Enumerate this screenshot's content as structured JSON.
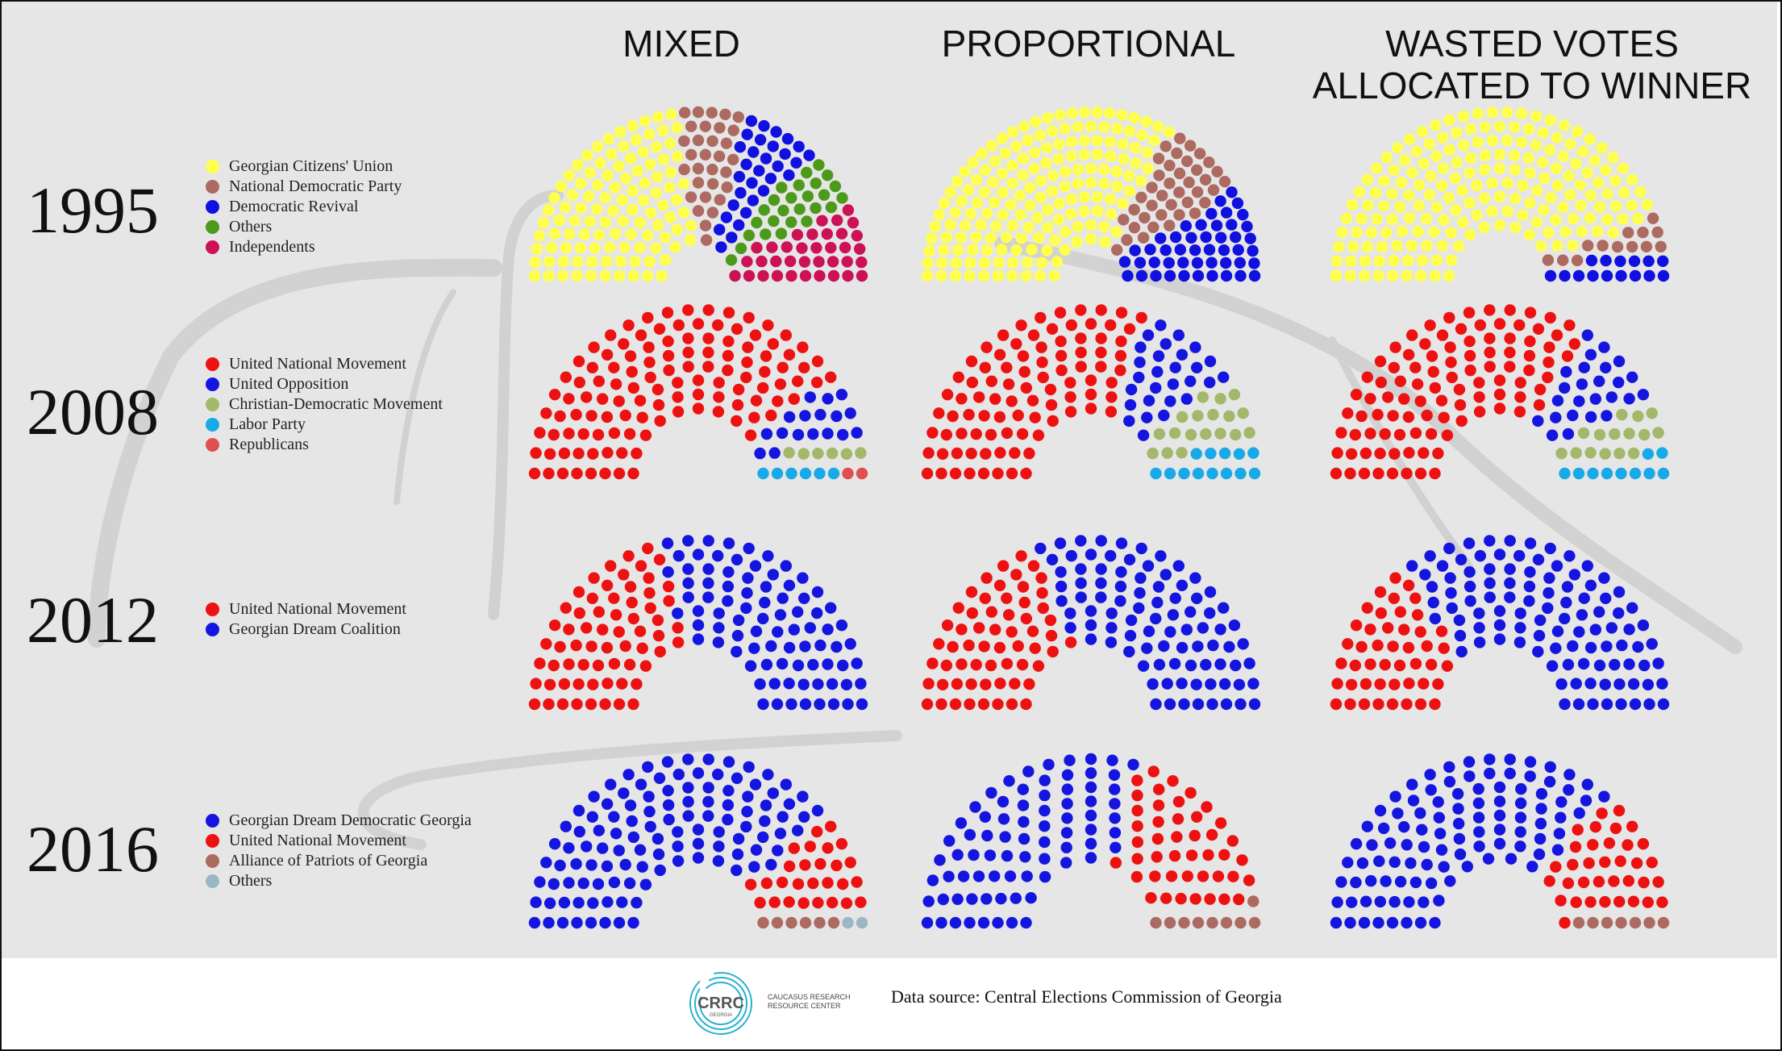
{
  "column_titles": [
    "MIXED",
    "PROPORTIONAL",
    "WASTED VOTES\nALLOCATED TO WINNER"
  ],
  "footer": {
    "logo_mark": "CRRC",
    "logo_sub": "GEORGIA",
    "logo_name": "CAUCASUS RESEARCH RESOURCE CENTER",
    "source": "Data source: Central Elections Commission of Georgia"
  },
  "chart_data": [
    {
      "type": "parliament",
      "year": "1995",
      "legend": [
        {
          "name": "Georgian Citizens' Union",
          "color": "#ffff4d"
        },
        {
          "name": "National Democratic Party",
          "color": "#ad6a60"
        },
        {
          "name": "Democratic Revival",
          "color": "#1010e0"
        },
        {
          "name": "Others",
          "color": "#4c9a1a"
        },
        {
          "name": "Independents",
          "color": "#cc1155"
        }
      ],
      "charts": [
        {
          "system": "MIXED",
          "rows": 10,
          "seats": [
            107,
            31,
            31,
            26,
            36
          ]
        },
        {
          "system": "PROPORTIONAL",
          "rows": 10,
          "seats": [
            165,
            39,
            47,
            0,
            0
          ]
        },
        {
          "system": "WASTED VOTES ALLOCATED TO WINNER",
          "rows": 9,
          "seats": [
            183,
            13,
            15,
            0,
            0
          ]
        }
      ]
    },
    {
      "type": "parliament",
      "year": "2008",
      "legend": [
        {
          "name": "United National Movement",
          "color": "#ee1111"
        },
        {
          "name": "United Opposition",
          "color": "#1515e0"
        },
        {
          "name": "Christian-Democratic Movement",
          "color": "#a3b86a"
        },
        {
          "name": "Labor Party",
          "color": "#18aae8"
        },
        {
          "name": "Republicans",
          "color": "#e05050"
        }
      ],
      "charts": [
        {
          "system": "MIXED",
          "rows": 8,
          "seats": [
            119,
            17,
            6,
            6,
            2
          ]
        },
        {
          "system": "PROPORTIONAL",
          "rows": 8,
          "seats": [
            91,
            28,
            18,
            13,
            0
          ]
        },
        {
          "system": "WASTED VOTES ALLOCATED TO WINNER",
          "rows": 8,
          "seats": [
            100,
            25,
            15,
            10,
            0
          ]
        }
      ]
    },
    {
      "type": "parliament",
      "year": "2012",
      "legend": [
        {
          "name": "United National Movement",
          "color": "#ee1111"
        },
        {
          "name": "Georgian Dream Coalition",
          "color": "#1515e0"
        }
      ],
      "charts": [
        {
          "system": "MIXED",
          "rows": 8,
          "seats": [
            65,
            85
          ]
        },
        {
          "system": "PROPORTIONAL",
          "rows": 8,
          "seats": [
            60,
            90
          ]
        },
        {
          "system": "WASTED VOTES ALLOCATED TO WINNER",
          "rows": 8,
          "seats": [
            46,
            104
          ]
        }
      ]
    },
    {
      "type": "parliament",
      "year": "2016",
      "legend": [
        {
          "name": "Georgian Dream Democratic Georgia",
          "color": "#1515e0"
        },
        {
          "name": "United National Movement",
          "color": "#ee1111"
        },
        {
          "name": "Alliance of Patriots of Georgia",
          "color": "#ad6a60"
        },
        {
          "name": "Others",
          "color": "#9ab8c4"
        }
      ],
      "charts": [
        {
          "system": "MIXED",
          "rows": 8,
          "seats": [
            115,
            27,
            6,
            2
          ]
        },
        {
          "system": "PROPORTIONAL",
          "rows": 8,
          "seats": [
            77,
            44,
            9,
            0
          ]
        },
        {
          "system": "WASTED VOTES ALLOCATED TO WINNER",
          "rows": 8,
          "seats": [
            103,
            35,
            7,
            0
          ]
        }
      ]
    }
  ]
}
